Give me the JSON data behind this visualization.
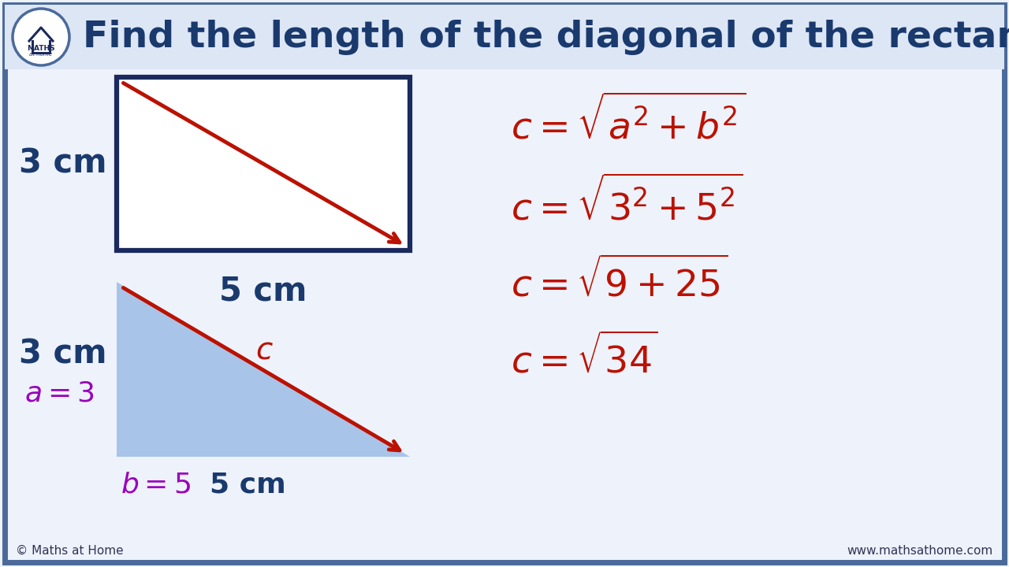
{
  "title": "Find the length of the diagonal of the rectangle",
  "title_color": "#1a3a6e",
  "title_fontsize": 34,
  "bg_color": "#eef2fb",
  "border_color": "#4a6a9a",
  "rect_stroke": "#1a2a5e",
  "rect_fill": "#ffffff",
  "triangle_fill": "#a8c4e8",
  "arrow_color": "#bb1100",
  "label_dark": "#1a3a6e",
  "label_purple": "#9900bb",
  "label_red": "#bb1100",
  "footer_left": "© Maths at Home",
  "footer_right": "www.mathsathome.com",
  "title_bg": "#dde6f5",
  "logo_stroke": "#4a6a9a",
  "logo_fill": "#ffffff",
  "logo_house": "#1a2a5e",
  "logo_text": "#1a2a5e"
}
